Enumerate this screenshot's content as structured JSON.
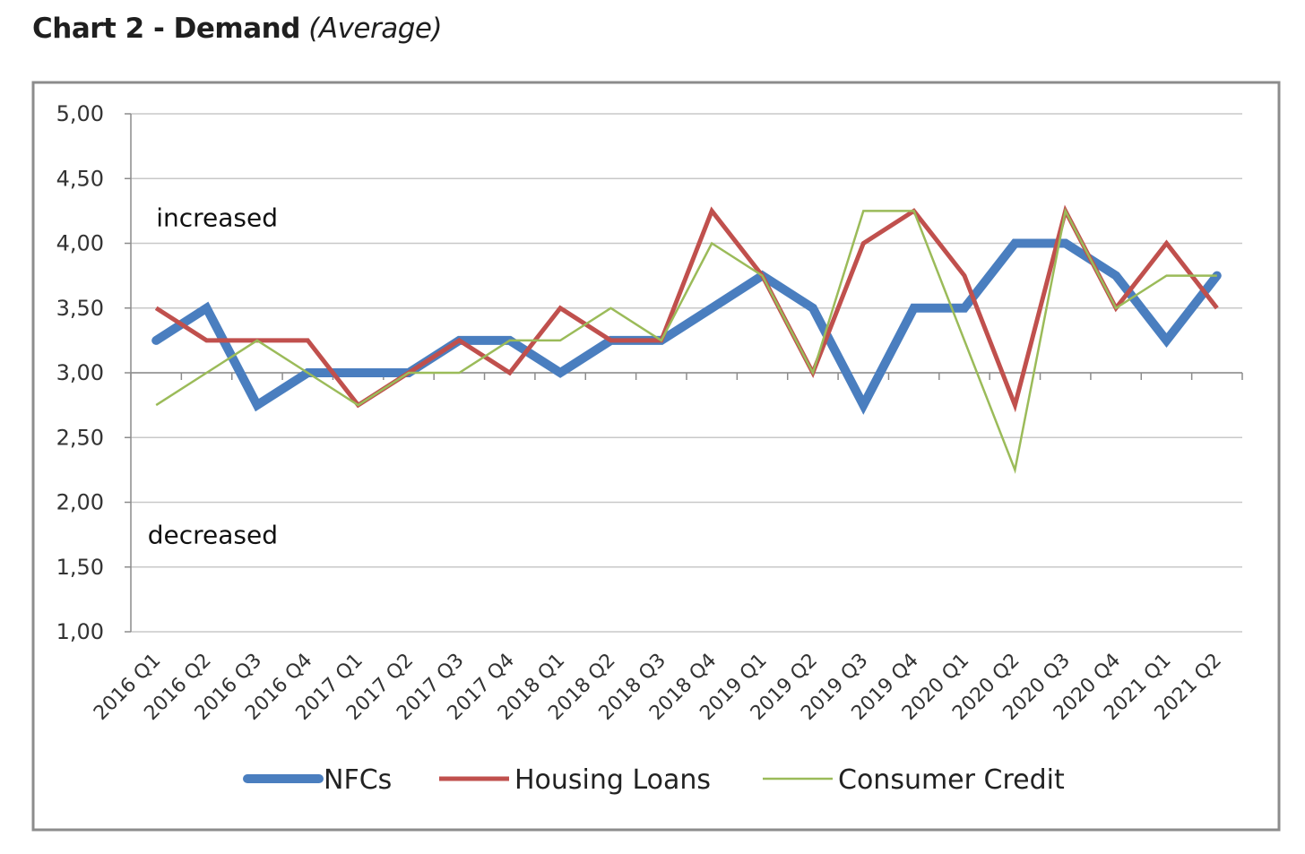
{
  "title": {
    "main": "Chart 2 - Demand",
    "sub": "(Average)"
  },
  "chart_data": {
    "type": "line",
    "title": "Chart 2 - Demand (Average)",
    "xlabel": "",
    "ylabel": "",
    "ylim": [
      1.0,
      5.0
    ],
    "yticks": [
      "1,00",
      "1,50",
      "2,00",
      "2,50",
      "3,00",
      "3,50",
      "4,00",
      "4,50",
      "5,00"
    ],
    "ytick_values": [
      1.0,
      1.5,
      2.0,
      2.5,
      3.0,
      3.5,
      4.0,
      4.5,
      5.0
    ],
    "grid": true,
    "legend_position": "bottom",
    "categories": [
      "2016 Q1",
      "2016 Q2",
      "2016 Q3",
      "2016 Q4",
      "2017 Q1",
      "2017 Q2",
      "2017 Q3",
      "2017 Q4",
      "2018 Q1",
      "2018 Q2",
      "2018 Q3",
      "2018 Q4",
      "2019 Q1",
      "2019 Q2",
      "2019 Q3",
      "2019 Q4",
      "2020 Q1",
      "2020 Q2",
      "2020 Q3",
      "2020 Q4",
      "2021 Q1",
      "2021 Q2"
    ],
    "series": [
      {
        "name": "NFCs",
        "color": "#4a7ebf",
        "values": [
          3.25,
          3.5,
          2.75,
          3.0,
          3.0,
          3.0,
          3.25,
          3.25,
          3.0,
          3.25,
          3.25,
          3.5,
          3.75,
          3.5,
          2.75,
          3.5,
          3.5,
          4.0,
          4.0,
          3.75,
          3.25,
          3.75
        ]
      },
      {
        "name": "Housing Loans",
        "color": "#c0504d",
        "values": [
          3.5,
          3.25,
          3.25,
          3.25,
          2.75,
          3.0,
          3.25,
          3.0,
          3.5,
          3.25,
          3.25,
          4.25,
          3.75,
          3.0,
          4.0,
          4.25,
          3.75,
          2.75,
          4.25,
          3.5,
          4.0,
          3.5
        ]
      },
      {
        "name": "Consumer Credit",
        "color": "#9bbb59",
        "values": [
          2.75,
          3.0,
          3.25,
          3.0,
          2.75,
          3.0,
          3.0,
          3.25,
          3.25,
          3.5,
          3.25,
          4.0,
          3.75,
          3.0,
          4.25,
          4.25,
          3.25,
          2.25,
          4.25,
          3.5,
          3.75,
          3.75
        ]
      }
    ],
    "annotations": [
      {
        "text": "increased",
        "at_value": 4.2
      },
      {
        "text": "decreased",
        "at_value": 1.75
      }
    ]
  }
}
